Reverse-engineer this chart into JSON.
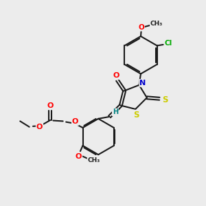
{
  "bg_color": "#ececec",
  "bond_color": "#1a1a1a",
  "bond_width": 1.5,
  "atom_colors": {
    "O": "#ff0000",
    "N": "#0000cc",
    "S": "#cccc00",
    "Cl": "#00aa00",
    "H": "#008080",
    "C": "#1a1a1a"
  },
  "font_size": 7.5
}
